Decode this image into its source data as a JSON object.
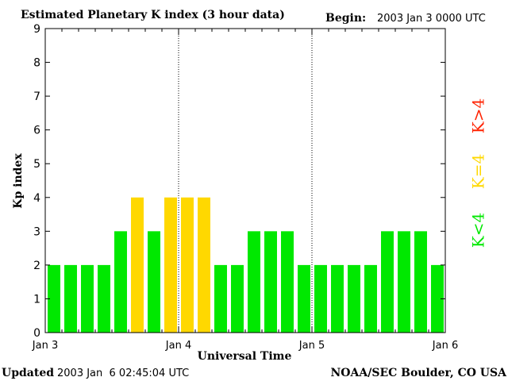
{
  "chart_data": {
    "type": "bar",
    "title": "Estimated Planetary K index (3 hour data)",
    "begin_label": "Begin:",
    "begin_value": "2003 Jan 3 0000 UTC",
    "ylabel": "Kp index",
    "xlabel": "Universal Time",
    "ylim": [
      0,
      9
    ],
    "yticks": [
      "0",
      "1",
      "2",
      "3",
      "4",
      "5",
      "6",
      "7",
      "8",
      "9"
    ],
    "xticks": [
      "Jan 3",
      "Jan 4",
      "Jan 5",
      "Jan 6"
    ],
    "values": [
      2,
      2,
      2,
      2,
      3,
      4,
      3,
      4,
      4,
      4,
      2,
      2,
      3,
      3,
      3,
      2,
      2,
      2,
      2,
      2,
      3,
      3,
      3,
      2
    ],
    "legend": [
      {
        "label": "K<4",
        "color": "#00e800"
      },
      {
        "label": "K=4",
        "color": "#ffd800"
      },
      {
        "label": "K>4",
        "color": "#ff2200"
      }
    ],
    "grid": "dotted vertical lines at day boundaries"
  },
  "footer": {
    "updated_label": "Updated",
    "updated_value": "2003 Jan  6 02:45:04 UTC",
    "source": "NOAA/SEC Boulder, CO USA"
  }
}
